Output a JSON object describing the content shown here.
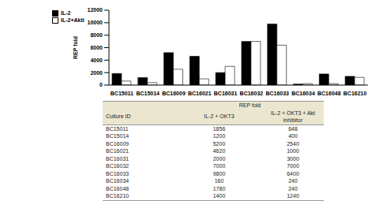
{
  "chart_data": {
    "type": "bar",
    "y_label": "REP fold",
    "categories": [
      "BC15011",
      "BC15014",
      "BC16009",
      "BC16021",
      "BC16031",
      "BC16032",
      "BC16033",
      "BC16034",
      "BC16048",
      "BC16210"
    ],
    "series": [
      {
        "name": "IL-2",
        "color": "#000000",
        "values": [
          1856,
          1200,
          5200,
          4620,
          2000,
          7000,
          9800,
          160,
          1780,
          1400
        ]
      },
      {
        "name": "IL-2+Akti",
        "color": "#ffffff",
        "values": [
          648,
          400,
          2540,
          1000,
          3000,
          7000,
          6400,
          240,
          240,
          1240
        ]
      }
    ],
    "ylim": [
      0,
      12000
    ],
    "yticks": [
      0,
      2000,
      4000,
      6000,
      8000,
      10000,
      12000
    ],
    "grid": false,
    "legend": "upper left"
  },
  "table": {
    "header": "REP fold",
    "columns": [
      "Culture ID",
      "IL-2 + OKT3",
      "IL-2 + OKT3 + Akt inhibitor"
    ],
    "rows": [
      [
        "BC15011",
        "1856",
        "648"
      ],
      [
        "BC15014",
        "1200",
        "400"
      ],
      [
        "BC16009",
        "5200",
        "2540"
      ],
      [
        "BC16021",
        "4620",
        "1000"
      ],
      [
        "BC16031",
        "2000",
        "3000"
      ],
      [
        "BC16032",
        "7000",
        "7000"
      ],
      [
        "BC16033",
        "9800",
        "6400"
      ],
      [
        "BC16034",
        "160",
        "240"
      ],
      [
        "BC16048",
        "1780",
        "240"
      ],
      [
        "BC16210",
        "1400",
        "1240"
      ]
    ]
  }
}
